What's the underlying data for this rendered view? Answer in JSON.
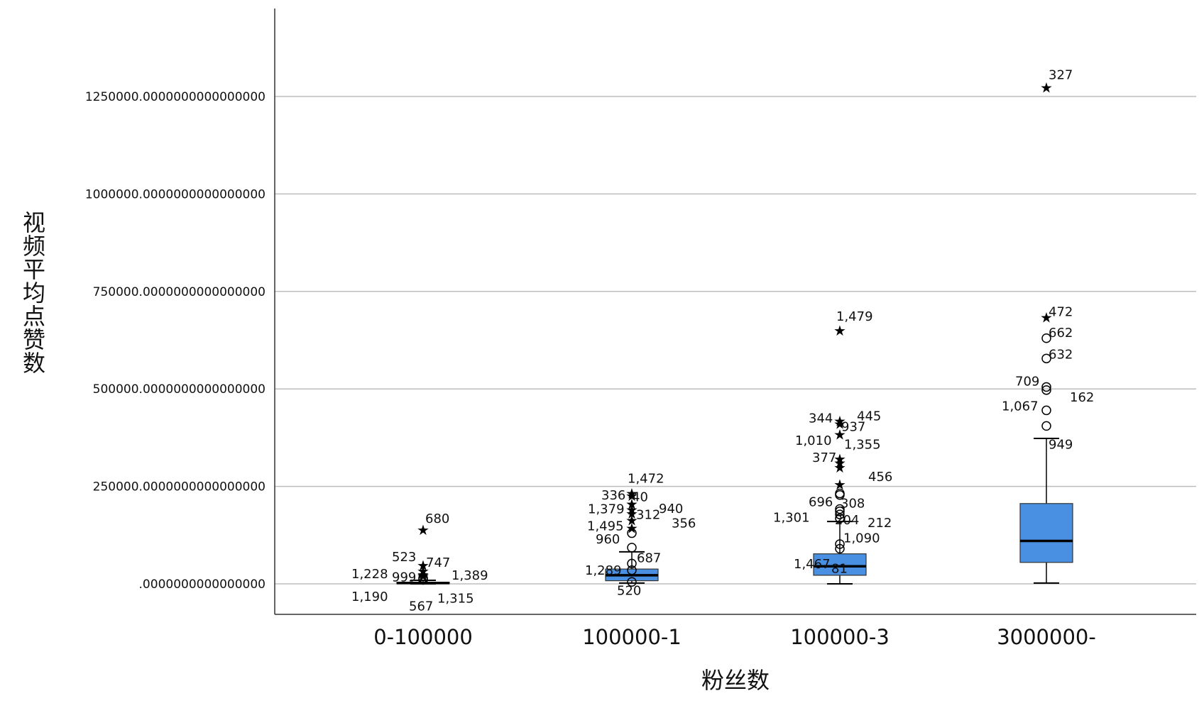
{
  "chart_data": {
    "type": "box",
    "xlabel": "粉丝数",
    "ylabel": "视频平均点赞数",
    "ylim": [
      -75000,
      1470000
    ],
    "yticks": [
      0,
      250000,
      500000,
      750000,
      1000000,
      1250000
    ],
    "ytick_labels": [
      ".0000000000000000",
      "250000.0000000000000000",
      "500000.0000000000000000",
      "750000.0000000000000000",
      "1000000.0000000000000000",
      "1250000.0000000000000000"
    ],
    "grid": "horizontal",
    "box_color": "#4a90e2",
    "categories": [
      "0-100000",
      "100000-1",
      "100000-3",
      "3000000-"
    ],
    "boxes": [
      {
        "category": "0-100000",
        "whisker_low": 0,
        "q1": 1000,
        "median": 2000,
        "q3": 4000,
        "whisker_high": 9000,
        "outliers": [
          {
            "value": 138000,
            "marker": "star",
            "label": "680"
          },
          {
            "value": 47000,
            "marker": "star",
            "label": "523"
          },
          {
            "value": 33000,
            "marker": "star",
            "label": "747"
          },
          {
            "value": 24000,
            "marker": "star",
            "label": "1,228"
          },
          {
            "value": 21000,
            "marker": "star",
            "label": "999"
          },
          {
            "value": 20000,
            "marker": "star",
            "label": "1,389"
          },
          {
            "value": 15000,
            "marker": "circle",
            "label": "1,190"
          },
          {
            "value": 12000,
            "marker": "circle",
            "label": "567"
          },
          {
            "value": 10000,
            "marker": "circle",
            "label": "1,315"
          }
        ]
      },
      {
        "category": "100000-1",
        "whisker_low": 2000,
        "q1": 8000,
        "median": 22000,
        "q3": 38000,
        "whisker_high": 82000,
        "outliers": [
          {
            "value": 232000,
            "marker": "star",
            "label": "1,472"
          },
          {
            "value": 226000,
            "marker": "star",
            "label": "336"
          },
          {
            "value": 205000,
            "marker": "star",
            "label": "40"
          },
          {
            "value": 190000,
            "marker": "star",
            "label": "1,379"
          },
          {
            "value": 180000,
            "marker": "star",
            "label": "940"
          },
          {
            "value": 163000,
            "marker": "star",
            "label": "312"
          },
          {
            "value": 143000,
            "marker": "star",
            "label": "1,495"
          },
          {
            "value": 130000,
            "marker": "circle",
            "label": "356"
          },
          {
            "value": 93000,
            "marker": "circle",
            "label": "960"
          },
          {
            "value": 52000,
            "marker": "circle",
            "label": "687"
          },
          {
            "value": 35000,
            "marker": "circle",
            "label": "1,289"
          },
          {
            "value": 5000,
            "marker": "circle",
            "label": "520"
          }
        ]
      },
      {
        "category": "100000-3",
        "whisker_low": 0,
        "q1": 22000,
        "median": 45000,
        "q3": 77000,
        "whisker_high": 160000,
        "outliers": [
          {
            "value": 650000,
            "marker": "star",
            "label": "1,479"
          },
          {
            "value": 418000,
            "marker": "star",
            "label": "344"
          },
          {
            "value": 410000,
            "marker": "star",
            "label": "445"
          },
          {
            "value": 383000,
            "marker": "star",
            "label": "937"
          },
          {
            "value": 320000,
            "marker": "star",
            "label": "1,010"
          },
          {
            "value": 310000,
            "marker": "star",
            "label": "1,355"
          },
          {
            "value": 298000,
            "marker": "star",
            "label": "377"
          },
          {
            "value": 255000,
            "marker": "star",
            "label": "456"
          },
          {
            "value": 232000,
            "marker": "circle",
            "label": "696"
          },
          {
            "value": 228000,
            "marker": "circle",
            "label": "308"
          },
          {
            "value": 192000,
            "marker": "circle",
            "label": "1,301"
          },
          {
            "value": 186000,
            "marker": "circle",
            "label": "204"
          },
          {
            "value": 178000,
            "marker": "circle",
            "label": "212"
          },
          {
            "value": 168000,
            "marker": "circle",
            "label": "1,090"
          },
          {
            "value": 102000,
            "marker": "circle",
            "label": "1,467"
          },
          {
            "value": 90000,
            "marker": "circle",
            "label": "81"
          }
        ]
      },
      {
        "category": "3000000-",
        "whisker_low": 2000,
        "q1": 55000,
        "median": 110000,
        "q3": 206000,
        "whisker_high": 373000,
        "outliers": [
          {
            "value": 1273000,
            "marker": "star",
            "label": "327"
          },
          {
            "value": 683000,
            "marker": "star",
            "label": "472"
          },
          {
            "value": 630000,
            "marker": "circle",
            "label": "662"
          },
          {
            "value": 578000,
            "marker": "circle",
            "label": "632"
          },
          {
            "value": 505000,
            "marker": "circle",
            "label": "709"
          },
          {
            "value": 497000,
            "marker": "circle",
            "label": "162"
          },
          {
            "value": 445000,
            "marker": "circle",
            "label": "1,067"
          },
          {
            "value": 405000,
            "marker": "circle",
            "label": "949"
          }
        ]
      }
    ]
  }
}
